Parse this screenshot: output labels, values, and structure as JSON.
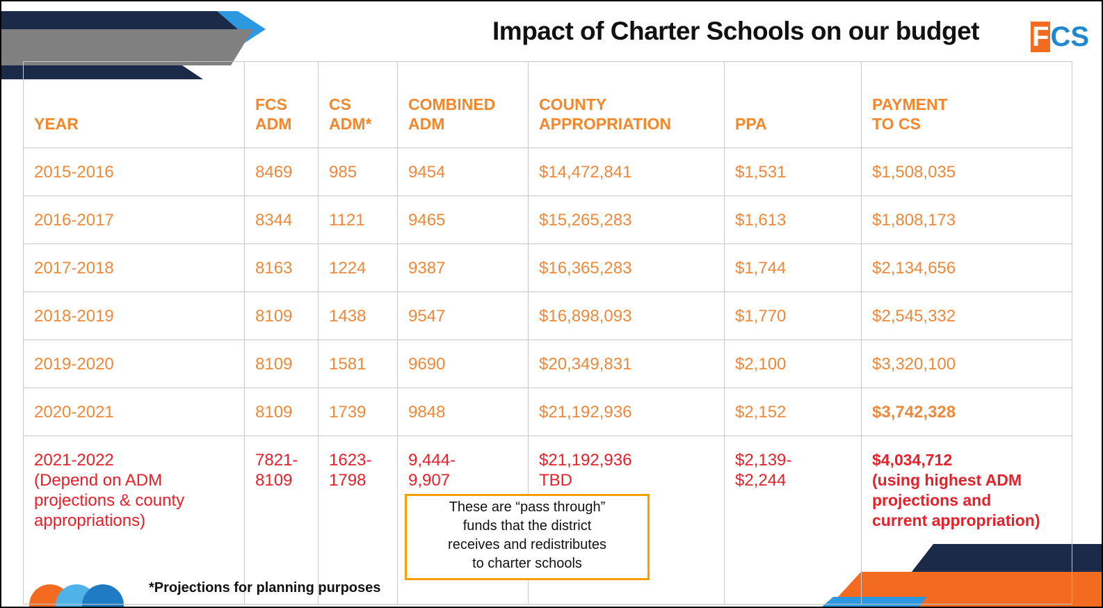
{
  "title": "Impact of Charter Schools on our budget",
  "logo": {
    "first": "F",
    "rest": "CS"
  },
  "table": {
    "headers": [
      "YEAR",
      "FCS\nADM",
      "CS\nADM*",
      "COMBINED\nADM",
      "COUNTY\nAPPROPRIATION",
      "PPA",
      "PAYMENT\nTO CS"
    ],
    "rows": [
      [
        "2015-2016",
        "8469",
        "985",
        "9454",
        "$14,472,841",
        "$1,531",
        "$1,508,035"
      ],
      [
        "2016-2017",
        "8344",
        "1121",
        "9465",
        "$15,265,283",
        "$1,613",
        "$1,808,173"
      ],
      [
        "2017-2018",
        "8163",
        "1224",
        "9387",
        "$16,365,283",
        "$1,744",
        "$2,134,656"
      ],
      [
        "2018-2019",
        "8109",
        "1438",
        "9547",
        "$16,898,093",
        "$1,770",
        "$2,545,332"
      ],
      [
        "2019-2020",
        "8109",
        "1581",
        "9690",
        "$20,349,831",
        "$2,100",
        "$3,320,100"
      ],
      [
        "2020-2021",
        "8109",
        "1739",
        "9848",
        "$21,192,936",
        "$2,152",
        "$3,742,328"
      ],
      [
        "2021-2022\n(Depend on ADM\nprojections & county\nappropriations)",
        "7821-\n8109",
        "1623-\n1798",
        "9,444-\n9,907",
        "$21,192,936\nTBD",
        "$2,139-\n$2,244",
        "$4,034,712\n(using highest ADM\nprojections and\ncurrent appropriation)"
      ]
    ]
  },
  "callout": "These are “pass through”\nfunds that the district\nreceives and redistributes\nto charter schools",
  "footnote": "*Projections for planning purposes"
}
